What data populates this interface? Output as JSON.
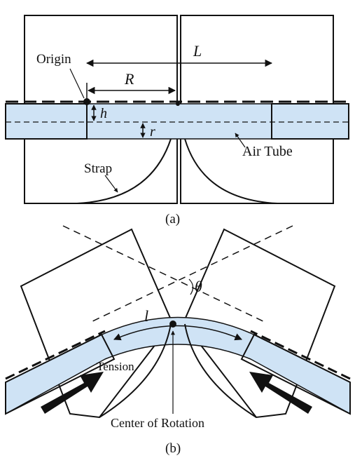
{
  "figure_a": {
    "caption": "(a)",
    "labels": {
      "origin": "Origin",
      "L": "L",
      "R": "R",
      "h": "h",
      "r": "r",
      "strap": "Strap",
      "air_tube": "Air Tube"
    }
  },
  "figure_b": {
    "caption": "(b)",
    "labels": {
      "theta": "θ",
      "l": "l",
      "tension": "Tension",
      "center_of_rotation": "Center of Rotation"
    }
  },
  "colors": {
    "tube_fill": "#cfe3f5",
    "stroke": "#111111",
    "background": "#ffffff"
  }
}
